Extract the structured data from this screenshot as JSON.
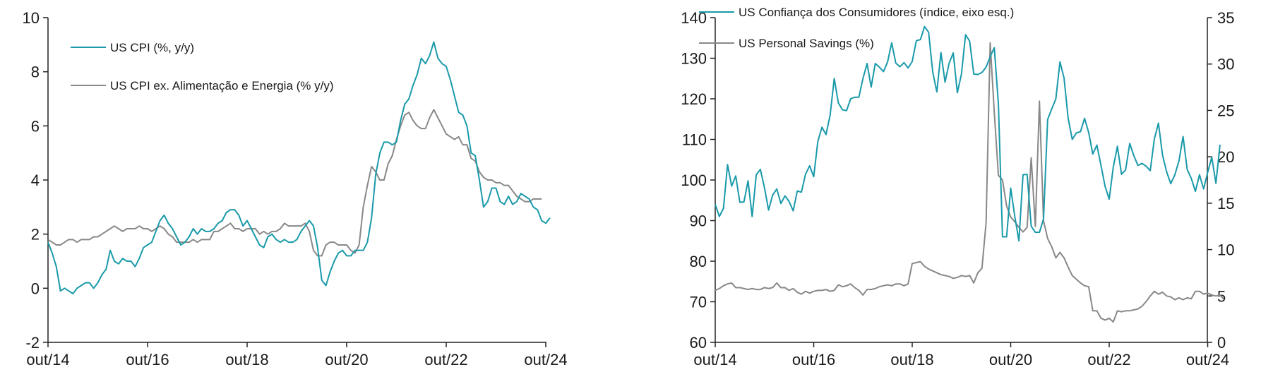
{
  "chart_data": [
    {
      "type": "line",
      "title": "",
      "xlabel": "",
      "ylabel": "",
      "ylim": [
        -2,
        10
      ],
      "yticks": [
        -2,
        0,
        2,
        4,
        6,
        8,
        10
      ],
      "x_start": "2014-10",
      "x_tick_labels": [
        "out/14",
        "out/16",
        "out/18",
        "out/20",
        "out/22",
        "out/24"
      ],
      "grid": false,
      "legend_position": "top-left",
      "series": [
        {
          "name": "US CPI (%, y/y)",
          "color": "#1a9aaa",
          "values": [
            1.7,
            1.3,
            0.8,
            -0.1,
            0.0,
            -0.1,
            -0.2,
            0.0,
            0.1,
            0.2,
            0.2,
            0.0,
            0.2,
            0.5,
            0.7,
            1.4,
            1.0,
            0.9,
            1.1,
            1.0,
            1.0,
            0.8,
            1.1,
            1.5,
            1.6,
            1.7,
            2.1,
            2.5,
            2.7,
            2.4,
            2.2,
            1.9,
            1.6,
            1.7,
            1.9,
            2.2,
            2.0,
            2.2,
            2.1,
            2.1,
            2.2,
            2.4,
            2.5,
            2.8,
            2.9,
            2.9,
            2.7,
            2.3,
            2.5,
            2.2,
            1.9,
            1.6,
            1.5,
            1.9,
            2.0,
            1.8,
            1.7,
            1.8,
            1.7,
            1.7,
            1.8,
            2.1,
            2.3,
            2.5,
            2.3,
            1.5,
            0.3,
            0.1,
            0.6,
            1.0,
            1.3,
            1.4,
            1.2,
            1.2,
            1.4,
            1.4,
            1.4,
            1.7,
            2.6,
            4.2,
            5.0,
            5.4,
            5.4,
            5.3,
            5.4,
            6.2,
            6.8,
            7.0,
            7.5,
            7.9,
            8.5,
            8.3,
            8.6,
            9.1,
            8.5,
            8.3,
            8.2,
            7.7,
            7.1,
            6.5,
            6.4,
            6.0,
            5.0,
            4.9,
            4.0,
            3.0,
            3.2,
            3.7,
            3.7,
            3.2,
            3.1,
            3.4,
            3.1,
            3.2,
            3.5,
            3.4,
            3.3,
            3.0,
            2.9,
            2.5,
            2.4,
            2.6
          ]
        },
        {
          "name": "US CPI ex. Alimentação e Energia (% y/y)",
          "color": "#888888",
          "values": [
            1.8,
            1.7,
            1.6,
            1.6,
            1.7,
            1.8,
            1.8,
            1.7,
            1.8,
            1.8,
            1.8,
            1.9,
            1.9,
            2.0,
            2.1,
            2.2,
            2.3,
            2.2,
            2.1,
            2.2,
            2.2,
            2.2,
            2.3,
            2.2,
            2.2,
            2.1,
            2.2,
            2.3,
            2.2,
            2.0,
            1.9,
            1.7,
            1.7,
            1.7,
            1.7,
            1.8,
            1.7,
            1.8,
            1.8,
            1.8,
            2.1,
            2.1,
            2.2,
            2.3,
            2.4,
            2.2,
            2.2,
            2.1,
            2.2,
            2.2,
            2.2,
            2.0,
            2.1,
            2.0,
            2.1,
            2.1,
            2.2,
            2.4,
            2.3,
            2.3,
            2.3,
            2.3,
            2.4,
            2.1,
            1.4,
            1.2,
            1.2,
            1.6,
            1.7,
            1.7,
            1.6,
            1.6,
            1.6,
            1.4,
            1.3,
            1.6,
            3.0,
            3.8,
            4.5,
            4.3,
            4.0,
            4.0,
            4.6,
            4.9,
            5.5,
            6.0,
            6.4,
            6.5,
            6.2,
            6.0,
            5.9,
            5.9,
            6.3,
            6.6,
            6.3,
            6.0,
            5.7,
            5.6,
            5.5,
            5.6,
            5.3,
            5.3,
            4.8,
            4.7,
            4.3,
            4.1,
            4.0,
            4.0,
            3.9,
            3.9,
            3.8,
            3.8,
            3.6,
            3.4,
            3.3,
            3.2,
            3.2,
            3.3,
            3.3,
            3.3
          ]
        }
      ]
    },
    {
      "type": "line",
      "title": "",
      "xlabel": "",
      "ylabel": "",
      "ylim_left": [
        60,
        140
      ],
      "yticks_left": [
        60,
        70,
        80,
        90,
        100,
        110,
        120,
        130,
        140
      ],
      "ylim_right": [
        0,
        35
      ],
      "yticks_right": [
        0,
        5,
        10,
        15,
        20,
        25,
        30,
        35
      ],
      "x_start": "2014-10",
      "x_tick_labels": [
        "out/14",
        "out/16",
        "out/18",
        "out/20",
        "out/22",
        "out/24"
      ],
      "grid": false,
      "legend_position": "top-left",
      "series": [
        {
          "name": "US Confiança dos Consumidores (índice, eixo esq.)",
          "axis": "left",
          "color": "#1a9aaa",
          "values": [
            94.0,
            91.0,
            93.0,
            103.8,
            98.5,
            101.0,
            94.5,
            94.6,
            99.8,
            91.0,
            101.3,
            102.6,
            98.1,
            92.6,
            96.3,
            97.8,
            94.2,
            96.1,
            94.7,
            92.4,
            97.3,
            97.0,
            101.4,
            103.5,
            100.8,
            109.5,
            113.0,
            111.2,
            116.0,
            125.0,
            119.0,
            117.3,
            117.1,
            120.0,
            120.4,
            120.4,
            125.0,
            128.7,
            122.9,
            128.7,
            127.8,
            126.7,
            129.1,
            133.8,
            128.8,
            127.9,
            128.9,
            127.6,
            129.2,
            134.3,
            134.6,
            137.8,
            136.4,
            126.6,
            121.7,
            131.4,
            124.1,
            128.8,
            131.3,
            121.5,
            126.1,
            135.8,
            134.2,
            126.1,
            126.0,
            126.5,
            127.8,
            130.4,
            132.6,
            118.8,
            86.0,
            86.0,
            98.0,
            91.0,
            85.0,
            101.3,
            101.4,
            88.6,
            87.1,
            87.1,
            90.4,
            114.9,
            117.5,
            120.0,
            129.1,
            125.1,
            115.2,
            110.0,
            111.6,
            111.9,
            115.2,
            111.7,
            106.4,
            108.6,
            103.6,
            98.4,
            95.3,
            103.2,
            108.3,
            101.4,
            102.5,
            109.0,
            106.0,
            103.6,
            104.1,
            103.4,
            102.3,
            110.1,
            114.0,
            106.1,
            102.0,
            99.1,
            101.3,
            104.7,
            110.7,
            102.6,
            100.4,
            97.2,
            101.3,
            97.8,
            101.9,
            105.6,
            99.2,
            108.7
          ]
        },
        {
          "name": "US Personal Savings (%)",
          "axis": "right",
          "color": "#888888",
          "values": [
            5.6,
            5.8,
            6.1,
            6.3,
            6.4,
            5.9,
            5.9,
            5.8,
            5.7,
            5.8,
            5.7,
            5.7,
            5.9,
            5.8,
            5.9,
            6.4,
            5.9,
            5.9,
            5.6,
            5.8,
            5.4,
            5.2,
            5.5,
            5.3,
            5.5,
            5.6,
            5.6,
            5.7,
            5.5,
            5.6,
            6.2,
            6.0,
            6.1,
            6.3,
            5.9,
            5.6,
            5.1,
            5.7,
            5.7,
            5.8,
            6.0,
            6.1,
            6.2,
            6.1,
            6.3,
            6.3,
            6.1,
            6.3,
            8.5,
            8.6,
            8.7,
            8.2,
            7.9,
            7.7,
            7.5,
            7.3,
            7.2,
            7.1,
            6.9,
            7.0,
            7.2,
            7.1,
            7.2,
            6.4,
            7.5,
            8.0,
            12.9,
            32.3,
            24.8,
            18.0,
            17.5,
            14.7,
            13.5,
            13.0,
            12.4,
            11.9,
            12.4,
            19.9,
            12.5,
            26.0,
            13.1,
            11.2,
            10.3,
            9.1,
            9.7,
            9.1,
            8.1,
            7.2,
            6.8,
            6.4,
            6.1,
            6.0,
            3.4,
            3.4,
            2.6,
            2.4,
            2.6,
            2.2,
            3.4,
            3.3,
            3.4,
            3.4,
            3.5,
            3.6,
            3.9,
            4.4,
            5.0,
            5.5,
            5.2,
            5.4,
            5.0,
            4.9,
            4.6,
            4.8,
            4.6,
            4.8,
            4.7,
            5.5,
            5.5,
            5.2,
            5.3,
            5.1,
            5.0,
            5.1,
            4.6
          ]
        }
      ]
    }
  ]
}
